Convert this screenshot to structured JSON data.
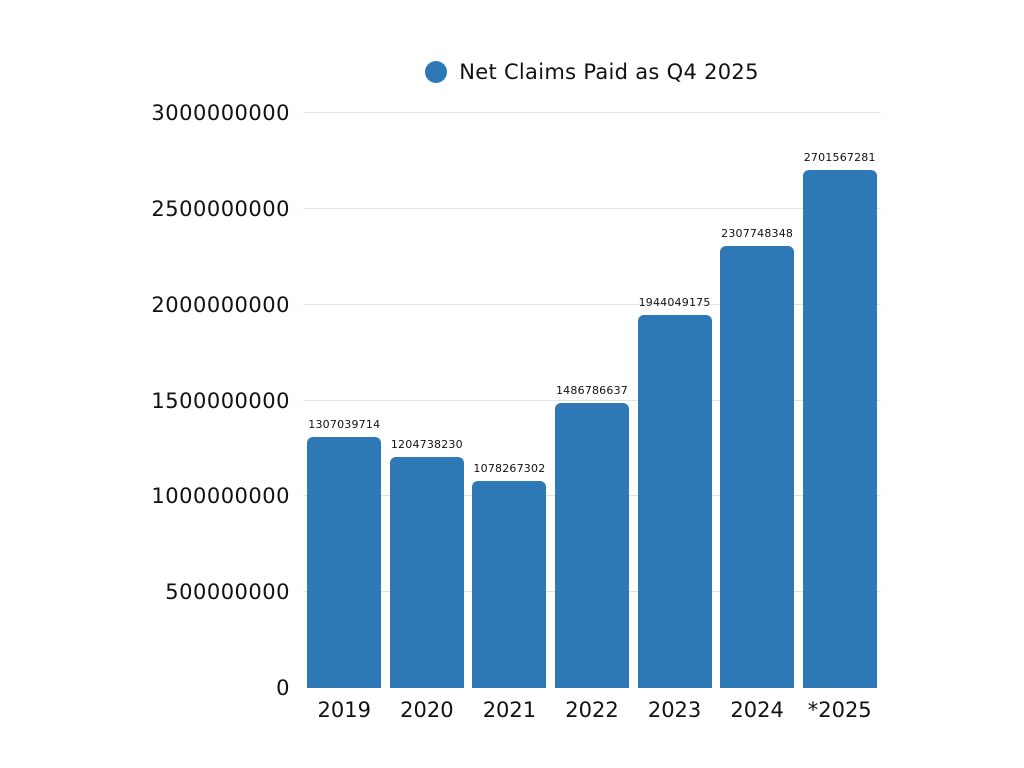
{
  "chart_data": {
    "type": "bar",
    "title": "",
    "legend_label": "Net Claims Paid as Q4 2025",
    "legend_position": "top-center",
    "categories": [
      "2019",
      "2020",
      "2021",
      "2022",
      "2023",
      "2024",
      "*2025"
    ],
    "values": [
      1307039714,
      1204738230,
      1078267302,
      1486786637,
      1944049175,
      2307748348,
      2701567281
    ],
    "value_labels": [
      "1307039714",
      "1204738230",
      "1078267302",
      "1486786637",
      "1944049175",
      "2307748348",
      "2701567281"
    ],
    "xlabel": "",
    "ylabel": "",
    "ylim": [
      0,
      3000000000
    ],
    "yticks": [
      0,
      500000000,
      1000000000,
      1500000000,
      2000000000,
      2500000000,
      3000000000
    ],
    "ytick_labels": [
      "0",
      "500000000",
      "1000000000",
      "1500000000",
      "2000000000",
      "2500000000",
      "3000000000"
    ],
    "grid": true,
    "colors": {
      "bar": "#2e79b5",
      "legend_dot": "#2e79b5",
      "gridline": "#e3e3e3",
      "text": "#111111",
      "background": "#ffffff"
    }
  }
}
